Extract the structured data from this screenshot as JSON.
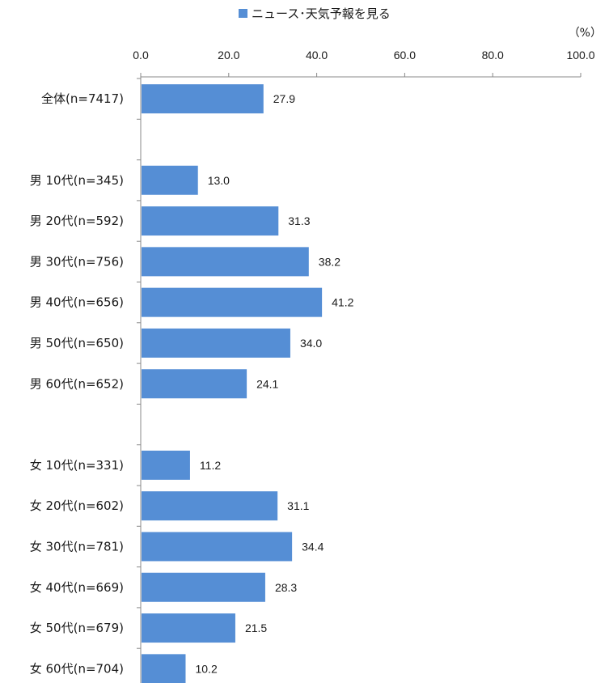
{
  "chart_data": {
    "type": "bar",
    "orientation": "horizontal",
    "series": [
      {
        "name": "ニュース･天気予報を見る",
        "color": "#558ED5"
      }
    ],
    "unit": "（%）",
    "xlim": [
      0,
      100
    ],
    "ticks": [
      "0.0",
      "20.0",
      "40.0",
      "60.0",
      "80.0",
      "100.0"
    ],
    "tick_values": [
      0,
      20,
      40,
      60,
      80,
      100
    ],
    "legend_position": "top-center",
    "rows": [
      {
        "label": "全体(n=7417)",
        "value": 27.9,
        "value_label": "27.9"
      },
      {
        "label": "",
        "value": null,
        "value_label": ""
      },
      {
        "label": "男  10代(n=345)",
        "value": 13.0,
        "value_label": "13.0"
      },
      {
        "label": "男  20代(n=592)",
        "value": 31.3,
        "value_label": "31.3"
      },
      {
        "label": "男  30代(n=756)",
        "value": 38.2,
        "value_label": "38.2"
      },
      {
        "label": "男  40代(n=656)",
        "value": 41.2,
        "value_label": "41.2"
      },
      {
        "label": "男  50代(n=650)",
        "value": 34.0,
        "value_label": "34.0"
      },
      {
        "label": "男  60代(n=652)",
        "value": 24.1,
        "value_label": "24.1"
      },
      {
        "label": "",
        "value": null,
        "value_label": ""
      },
      {
        "label": "女  10代(n=331)",
        "value": 11.2,
        "value_label": "11.2"
      },
      {
        "label": "女  20代(n=602)",
        "value": 31.1,
        "value_label": "31.1"
      },
      {
        "label": "女  30代(n=781)",
        "value": 34.4,
        "value_label": "34.4"
      },
      {
        "label": "女  40代(n=669)",
        "value": 28.3,
        "value_label": "28.3"
      },
      {
        "label": "女  50代(n=679)",
        "value": 21.5,
        "value_label": "21.5"
      },
      {
        "label": "女  60代(n=704)",
        "value": 10.2,
        "value_label": "10.2"
      }
    ]
  }
}
